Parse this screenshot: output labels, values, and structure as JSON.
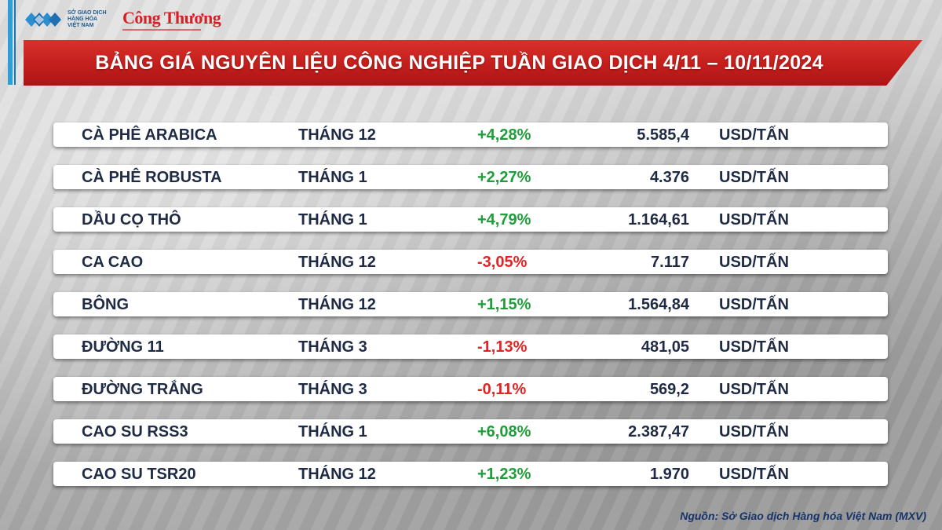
{
  "logos": {
    "mxv": [
      "SỞ GIAO DỊCH",
      "HÀNG HÓA",
      "VIỆT NAM"
    ],
    "congthuong": "Công Thương"
  },
  "title": "BẢNG GIÁ NGUYÊN LIỆU CÔNG NGHIỆP TUẦN GIAO DỊCH 4/11 – 10/11/2024",
  "rows": [
    {
      "name": "CÀ PHÊ ARABICA",
      "month": "THÁNG 12",
      "change": "+4,28%",
      "price": "5.585,4",
      "unit": "USD/TẤN",
      "direction": "up"
    },
    {
      "name": "CÀ PHÊ ROBUSTA",
      "month": "THÁNG 1",
      "change": "+2,27%",
      "price": "4.376",
      "unit": "USD/TẤN",
      "direction": "up"
    },
    {
      "name": "DẦU CỌ THÔ",
      "month": "THÁNG 1",
      "change": "+4,79%",
      "price": "1.164,61",
      "unit": "USD/TẤN",
      "direction": "up"
    },
    {
      "name": "CA CAO",
      "month": "THÁNG 12",
      "change": "-3,05%",
      "price": "7.117",
      "unit": "USD/TẤN",
      "direction": "down"
    },
    {
      "name": "BÔNG",
      "month": "THÁNG 12",
      "change": "+1,15%",
      "price": "1.564,84",
      "unit": "USD/TẤN",
      "direction": "up"
    },
    {
      "name": "ĐƯỜNG 11",
      "month": "THÁNG 3",
      "change": "-1,13%",
      "price": "481,05",
      "unit": "USD/TẤN",
      "direction": "down"
    },
    {
      "name": "ĐƯỜNG TRẮNG",
      "month": "THÁNG 3",
      "change": "-0,11%",
      "price": "569,2",
      "unit": "USD/TẤN",
      "direction": "down"
    },
    {
      "name": "CAO SU RSS3",
      "month": "THÁNG 1",
      "change": "+6,08%",
      "price": "2.387,47",
      "unit": "USD/TẤN",
      "direction": "up"
    },
    {
      "name": "CAO SU TSR20",
      "month": "THÁNG 12",
      "change": "+1,23%",
      "price": "1.970",
      "unit": "USD/TẤN",
      "direction": "up"
    }
  ],
  "source": "Nguồn: Sở Giao dịch Hàng hóa Việt Nam (MXV)",
  "colors": {
    "banner": "#c41e1c",
    "up": "#1e9e3a",
    "down": "#e02424",
    "text": "#1f2a44",
    "source": "#16346b"
  }
}
